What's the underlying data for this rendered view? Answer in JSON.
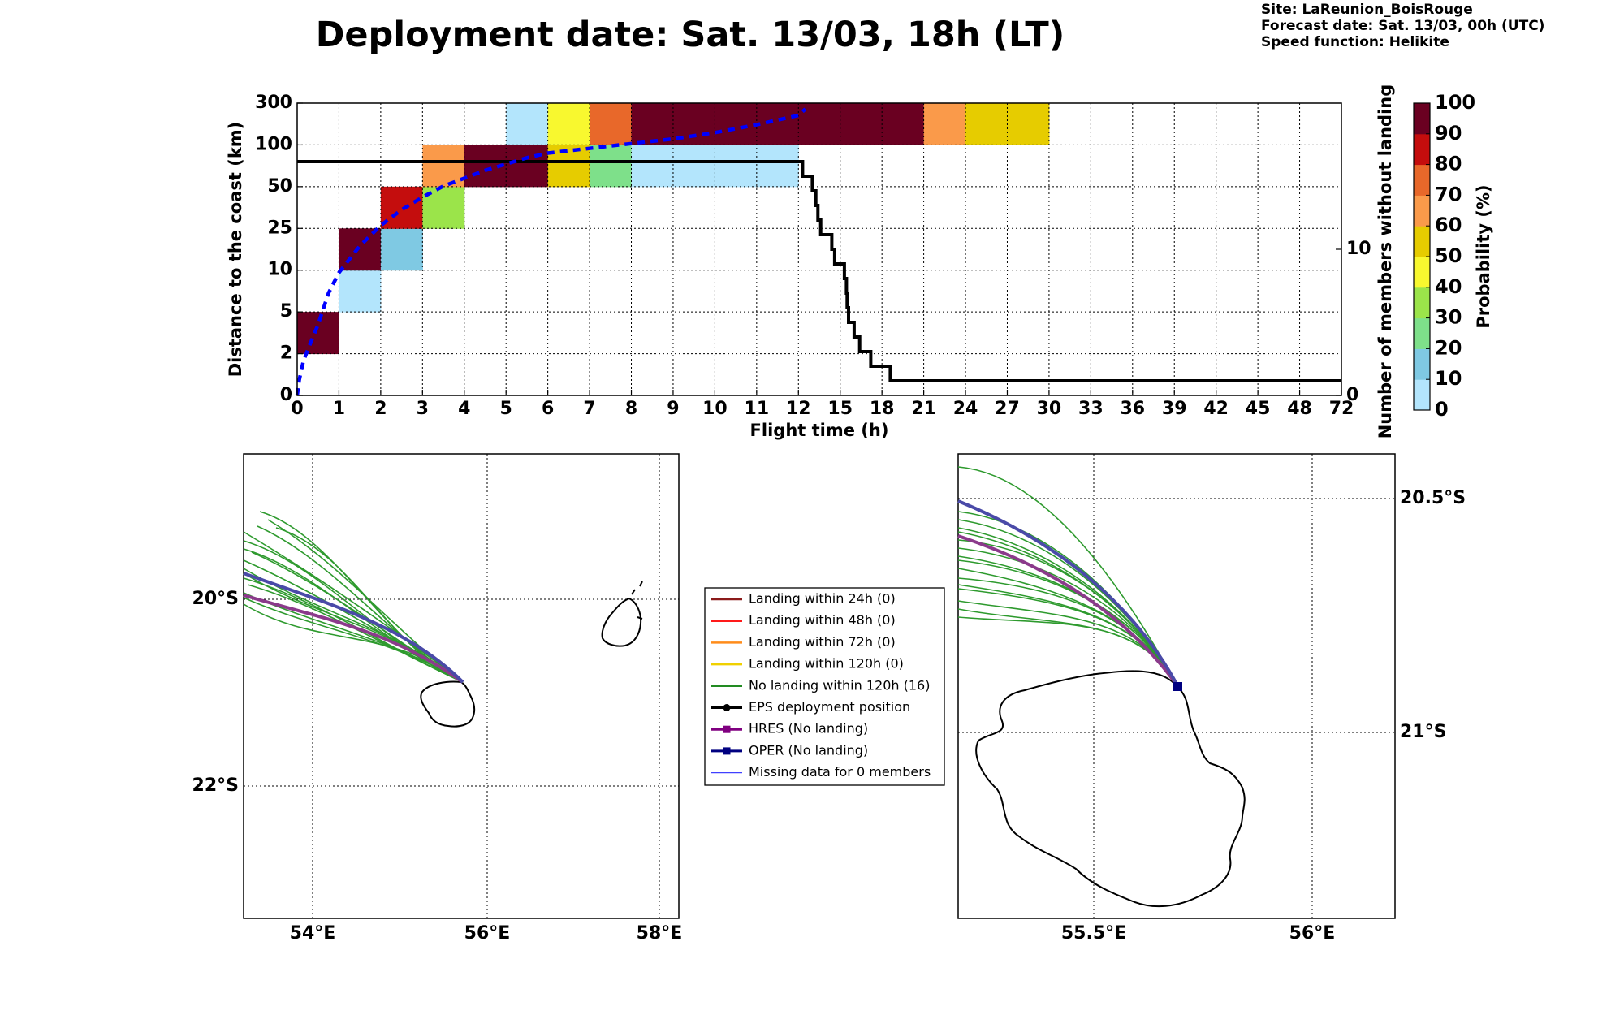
{
  "header": {
    "title": "Deployment date: Sat. 13/03, 18h (LT)",
    "site": "Site: LaReunion_BoisRouge",
    "forecast_date": "Forecast date: Sat. 13/03, 00h (UTC)",
    "speed_function": "Speed function: Helikite"
  },
  "chart_data": [
    {
      "type": "heatmap",
      "xlabel": "Flight time (h)",
      "ylabel": "Distance to the coast (km)",
      "y2label": "Number of members without landing",
      "x_ticks": [
        "0",
        "1",
        "2",
        "3",
        "4",
        "5",
        "6",
        "7",
        "8",
        "9",
        "10",
        "11",
        "12",
        "15",
        "18",
        "21",
        "24",
        "27",
        "30",
        "33",
        "36",
        "39",
        "42",
        "45",
        "48",
        "72"
      ],
      "y_ticks": [
        "0",
        "2",
        "5",
        "10",
        "25",
        "50",
        "100",
        "300"
      ],
      "y2_ticks": [
        "0",
        "10"
      ],
      "cells": [
        {
          "x": 0,
          "y": 1,
          "p": 95
        },
        {
          "x": 1,
          "y": 2,
          "p": 5
        },
        {
          "x": 1,
          "y": 3,
          "p": 95
        },
        {
          "x": 2,
          "y": 3,
          "p": 15
        },
        {
          "x": 2,
          "y": 4,
          "p": 85
        },
        {
          "x": 3,
          "y": 4,
          "p": 35
        },
        {
          "x": 3,
          "y": 5,
          "p": 65
        },
        {
          "x": 4,
          "y": 5,
          "p": 95
        },
        {
          "x": 5,
          "y": 5,
          "p": 95
        },
        {
          "x": 5,
          "y": 6,
          "p": 5
        },
        {
          "x": 6,
          "y": 5,
          "p": 55
        },
        {
          "x": 6,
          "y": 6,
          "p": 45
        },
        {
          "x": 7,
          "y": 5,
          "p": 25
        },
        {
          "x": 7,
          "y": 6,
          "p": 75
        },
        {
          "x": 8,
          "y": 5,
          "p": 5
        },
        {
          "x": 8,
          "y": 6,
          "p": 95
        },
        {
          "x": 9,
          "y": 5,
          "p": 5
        },
        {
          "x": 9,
          "y": 6,
          "p": 95
        },
        {
          "x": 10,
          "y": 5,
          "p": 5
        },
        {
          "x": 10,
          "y": 6,
          "p": 95
        },
        {
          "x": 11,
          "y": 5,
          "p": 5
        },
        {
          "x": 11,
          "y": 6,
          "p": 95
        },
        {
          "x": 12,
          "y": 6,
          "p": 95
        },
        {
          "x": 13,
          "y": 6,
          "p": 95
        },
        {
          "x": 14,
          "y": 6,
          "p": 95
        },
        {
          "x": 15,
          "y": 6,
          "p": 65
        },
        {
          "x": 16,
          "y": 6,
          "p": 55
        },
        {
          "x": 17,
          "y": 6,
          "p": 55
        }
      ],
      "median_distance_curve": {
        "color": "#0000ff",
        "x": [
          0,
          0.05,
          0.15,
          0.3,
          0.5,
          0.75,
          1,
          1.5,
          2,
          2.5,
          3,
          3.5,
          4,
          4.5,
          5,
          5.5,
          6,
          7,
          8,
          9,
          10,
          11,
          12,
          12.5
        ],
        "y": [
          0,
          1,
          2.2,
          3.2,
          4.5,
          6.5,
          7.8,
          9.5,
          10.8,
          11.8,
          12.6,
          13.3,
          13.8,
          14.3,
          14.7,
          15.1,
          15.4,
          15.7,
          16,
          16.3,
          16.7,
          17.2,
          17.8,
          18.2
        ]
      },
      "members_without_landing": {
        "color": "#000000",
        "x": [
          0,
          12.3,
          12.3,
          13,
          13,
          13.25,
          13.25,
          13.4,
          13.4,
          13.6,
          13.6,
          14.4,
          14.4,
          14.6,
          14.6,
          15.3,
          15.3,
          15.45,
          15.45,
          15.5,
          15.5,
          15.6,
          15.6,
          16,
          16,
          16.4,
          16.4,
          17.2,
          17.2,
          18.6,
          18.6,
          72
        ],
        "y": [
          16,
          16,
          15,
          15,
          14,
          14,
          13,
          13,
          12,
          12,
          11,
          11,
          10,
          10,
          9,
          9,
          8,
          8,
          7,
          7,
          6,
          6,
          5,
          5,
          4,
          4,
          3,
          3,
          2,
          2,
          1,
          1
        ]
      },
      "colorbar": {
        "label": "Probability (%)",
        "ticks": [
          "0",
          "10",
          "20",
          "30",
          "40",
          "50",
          "60",
          "70",
          "80",
          "90",
          "100"
        ],
        "colors": [
          "#b3e5fc",
          "#7fc9e3",
          "#7ee08a",
          "#9be44a",
          "#f8f82f",
          "#e6cc00",
          "#fa9a4a",
          "#e8682a",
          "#c40d0d",
          "#6a0021"
        ]
      }
    },
    {
      "type": "map",
      "panel": "left",
      "lon_labels": [
        "54°E",
        "56°E",
        "58°E"
      ],
      "lat_labels": [
        "20°S",
        "22°S"
      ]
    },
    {
      "type": "map",
      "panel": "right",
      "lon_labels": [
        "55.5°E",
        "56°E"
      ],
      "lat_labels": [
        "20.5°S",
        "21°S"
      ]
    }
  ],
  "legend": {
    "items": [
      {
        "label": "Landing within 24h (0)",
        "color": "#8b1a1a",
        "marker": "line"
      },
      {
        "label": "Landing within 48h (0)",
        "color": "#ff1a1a",
        "marker": "line"
      },
      {
        "label": "Landing within 72h (0)",
        "color": "#ff8c1a",
        "marker": "line"
      },
      {
        "label": "Landing within 120h (0)",
        "color": "#f0d000",
        "marker": "line"
      },
      {
        "label": "No landing within 120h (16)",
        "color": "#228b22",
        "marker": "line"
      },
      {
        "label": "EPS deployment position",
        "color": "#000000",
        "marker": "circle"
      },
      {
        "label": "HRES (No landing)",
        "color": "#800080",
        "marker": "square"
      },
      {
        "label": "OPER (No landing)",
        "color": "#000080",
        "marker": "square"
      },
      {
        "label": "Missing data for 0 members",
        "color": "#4040ff",
        "marker": "thin"
      }
    ]
  }
}
